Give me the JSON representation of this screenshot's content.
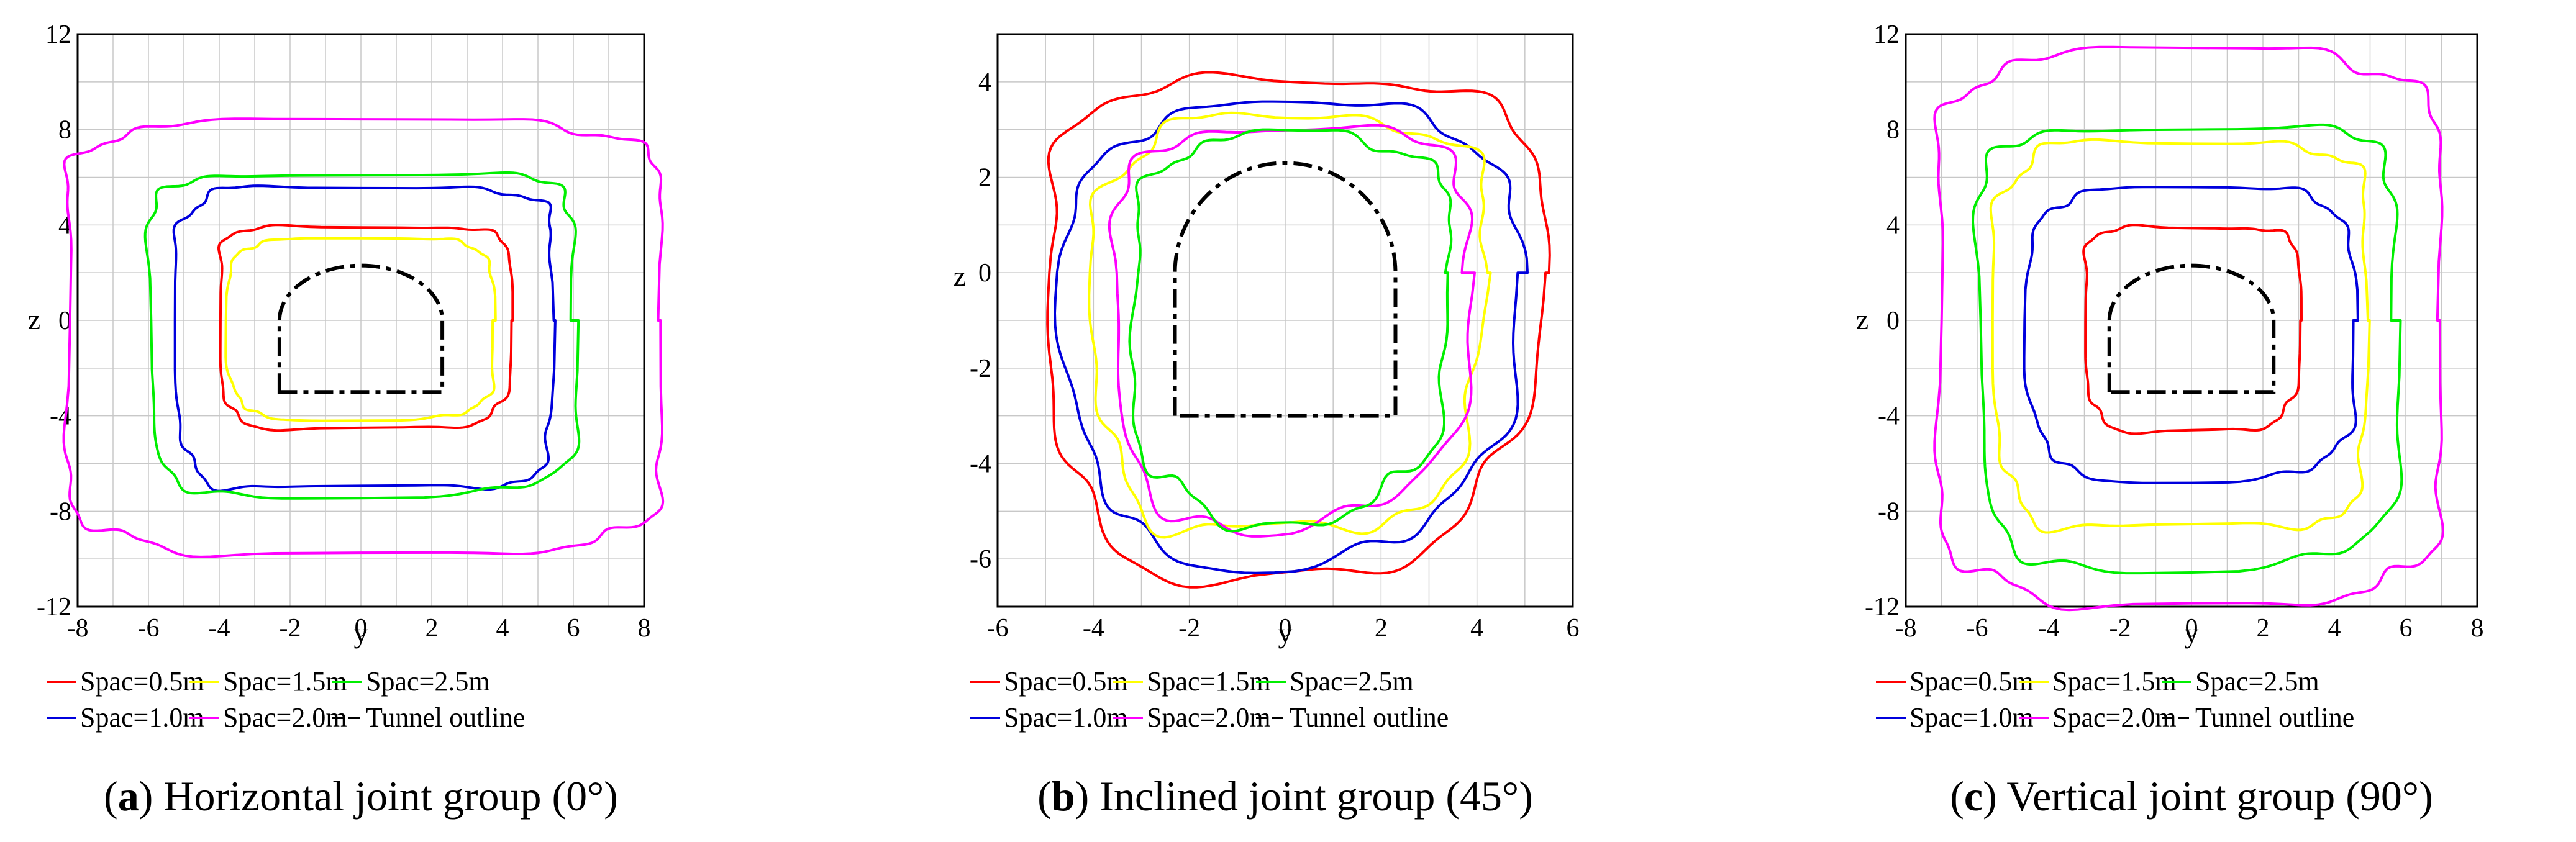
{
  "colors": {
    "spac_0_5": "#ff0000",
    "spac_1_0": "#0000dd",
    "spac_1_5": "#ffff00",
    "spac_2_0": "#ff00ff",
    "spac_2_5": "#00ee00",
    "tunnel": "#000000",
    "grid": "#c8c8c8"
  },
  "legend": {
    "spac_0_5": "Spac=0.5m",
    "spac_1_0": "Spac=1.0m",
    "spac_1_5": "Spac=1.5m",
    "spac_2_0": "Spac=2.0m",
    "spac_2_5": "Spac=2.5m",
    "tunnel": "Tunnel outline"
  },
  "chart_data": [
    {
      "type": "line",
      "caption_letter": "a",
      "caption_rest": " Horizontal joint group (0°)",
      "xlabel": "y",
      "ylabel": "z",
      "xlim": [
        -8,
        8
      ],
      "ylim": [
        -12,
        12
      ],
      "xticks": [
        -8,
        -6,
        -4,
        -2,
        0,
        2,
        4,
        6,
        8
      ],
      "yticks": [
        -12,
        -8,
        -4,
        0,
        4,
        8,
        12
      ],
      "grid": true,
      "series": [
        {
          "name": "Spac=0.5m",
          "key": "spac_0_5",
          "hw_left": 4.0,
          "hw_right": 4.2,
          "top": 4.0,
          "bottom": -4.5
        },
        {
          "name": "Spac=1.5m",
          "key": "spac_1_5",
          "hw_left": 3.7,
          "hw_right": 3.7,
          "top": 3.4,
          "bottom": -4.1
        },
        {
          "name": "Spac=1.0m",
          "key": "spac_1_0",
          "hw_left": 5.2,
          "hw_right": 5.5,
          "top": 5.6,
          "bottom": -7.1
        },
        {
          "name": "Spac=2.5m",
          "key": "spac_2_5",
          "hw_left": 6.0,
          "hw_right": 6.1,
          "top": 6.2,
          "bottom": -7.3
        },
        {
          "name": "Spac=2.0m",
          "key": "spac_2_0",
          "hw_left": 8.4,
          "hw_right": 8.6,
          "top": 8.3,
          "bottom": -9.7
        }
      ],
      "tunnel": {
        "half_width": 2.3,
        "wall_top": 0.0,
        "crown": 2.3,
        "invert": -3.0
      }
    },
    {
      "type": "line",
      "caption_letter": "b",
      "caption_rest": " Inclined joint group (45°)",
      "xlabel": "y",
      "ylabel": "z",
      "xlim": [
        -6,
        6
      ],
      "ylim": [
        -7,
        5
      ],
      "xticks": [
        -6,
        -4,
        -2,
        0,
        2,
        4,
        6
      ],
      "yticks": [
        -6,
        -4,
        -2,
        0,
        2,
        4
      ],
      "grid": true,
      "series": [
        {
          "name": "Spac=0.5m",
          "key": "spac_0_5",
          "hw_left": 5.0,
          "hw_right": 5.3,
          "top": 4.2,
          "bottom": -6.3
        },
        {
          "name": "Spac=1.0m",
          "key": "spac_1_0",
          "hw_left": 4.5,
          "hw_right": 4.8,
          "top": 3.5,
          "bottom": -6.0
        },
        {
          "name": "Spac=1.5m",
          "key": "spac_1_5",
          "hw_left": 4.0,
          "hw_right": 4.3,
          "top": 3.3,
          "bottom": -5.5
        },
        {
          "name": "Spac=2.0m",
          "key": "spac_2_0",
          "hw_left": 3.6,
          "hw_right": 3.9,
          "top": 3.1,
          "bottom": -5.3
        },
        {
          "name": "Spac=2.5m",
          "key": "spac_2_5",
          "hw_left": 3.2,
          "hw_right": 3.5,
          "top": 2.9,
          "bottom": -5.2
        }
      ],
      "tunnel": {
        "half_width": 2.3,
        "wall_top": 0.0,
        "crown": 2.3,
        "invert": -3.0
      }
    },
    {
      "type": "line",
      "caption_letter": "c",
      "caption_rest": " Vertical joint group (90°)",
      "xlabel": "y",
      "ylabel": "z",
      "xlim": [
        -8,
        8
      ],
      "ylim": [
        -12,
        12
      ],
      "xticks": [
        -8,
        -6,
        -4,
        -2,
        0,
        2,
        4,
        6,
        8
      ],
      "yticks": [
        -12,
        -8,
        -4,
        0,
        4,
        8,
        12
      ],
      "grid": true,
      "series": [
        {
          "name": "Spac=0.5m",
          "key": "spac_0_5",
          "hw_left": 3.0,
          "hw_right": 3.0,
          "top": 4.0,
          "bottom": -4.6
        },
        {
          "name": "Spac=1.0m",
          "key": "spac_1_0",
          "hw_left": 4.5,
          "hw_right": 4.5,
          "top": 5.5,
          "bottom": -6.6
        },
        {
          "name": "Spac=1.5m",
          "key": "spac_1_5",
          "hw_left": 5.5,
          "hw_right": 5.0,
          "top": 7.5,
          "bottom": -8.8
        },
        {
          "name": "Spac=2.5m",
          "key": "spac_2_5",
          "hw_left": 6.0,
          "hw_right": 5.8,
          "top": 8.2,
          "bottom": -10.3
        },
        {
          "name": "Spac=2.0m",
          "key": "spac_2_0",
          "hw_left": 7.2,
          "hw_right": 7.1,
          "top": 11.2,
          "bottom": -11.8
        }
      ],
      "tunnel": {
        "half_width": 2.3,
        "wall_top": 0.0,
        "crown": 2.3,
        "invert": -3.0
      }
    }
  ]
}
